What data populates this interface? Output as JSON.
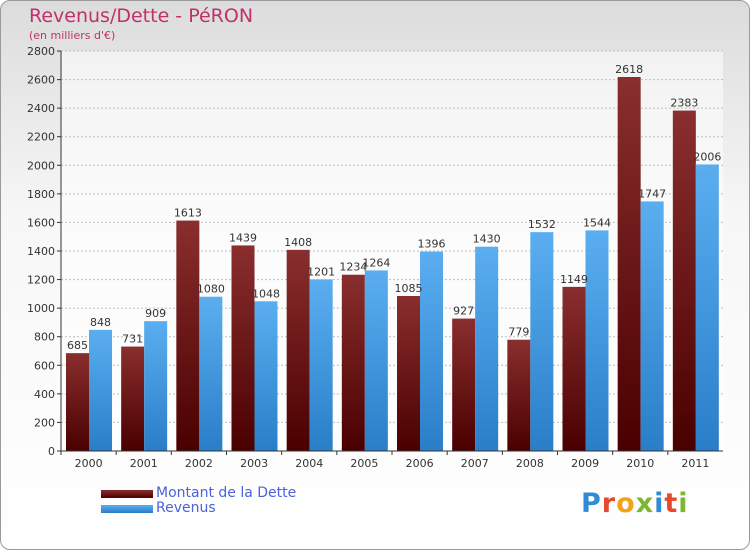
{
  "title": "Revenus/Dette - PéRON",
  "subtitle": "(en milliers d'€)",
  "colors": {
    "title": "#c0306a",
    "dette_top": "#8a2e2e",
    "dette_bottom": "#4a0000",
    "revenus_top": "#5aaef0",
    "revenus_bottom": "#2a7ec8",
    "legend_text": "#4b62d8"
  },
  "logo": {
    "text": "Proxiti",
    "letter_colors": [
      "#2f8bd6",
      "#e64a2e",
      "#f2a21b",
      "#7bb82d",
      "#2f8bd6",
      "#e64a2e",
      "#7bb82d"
    ]
  },
  "legend": {
    "dette": "Montant de la Dette",
    "revenus": "Revenus"
  },
  "chart_data": {
    "type": "bar",
    "title": "Revenus/Dette - PéRON",
    "subtitle": "(en milliers d'€)",
    "xlabel": "",
    "ylabel": "",
    "ylim": [
      0,
      2800
    ],
    "yticks": [
      0,
      200,
      400,
      600,
      800,
      1000,
      1200,
      1400,
      1600,
      1800,
      2000,
      2200,
      2400,
      2600,
      2800
    ],
    "categories": [
      "2000",
      "2001",
      "2002",
      "2003",
      "2004",
      "2005",
      "2006",
      "2007",
      "2008",
      "2009",
      "2010",
      "2011"
    ],
    "series": [
      {
        "name": "Montant de la Dette",
        "values": [
          685,
          731,
          1613,
          1439,
          1408,
          1234,
          1085,
          927,
          779,
          1149,
          2618,
          2383
        ]
      },
      {
        "name": "Revenus",
        "values": [
          848,
          909,
          1080,
          1048,
          1201,
          1264,
          1396,
          1430,
          1532,
          1544,
          1747,
          2006
        ]
      }
    ],
    "grid": true,
    "legend_position": "bottom-left"
  }
}
